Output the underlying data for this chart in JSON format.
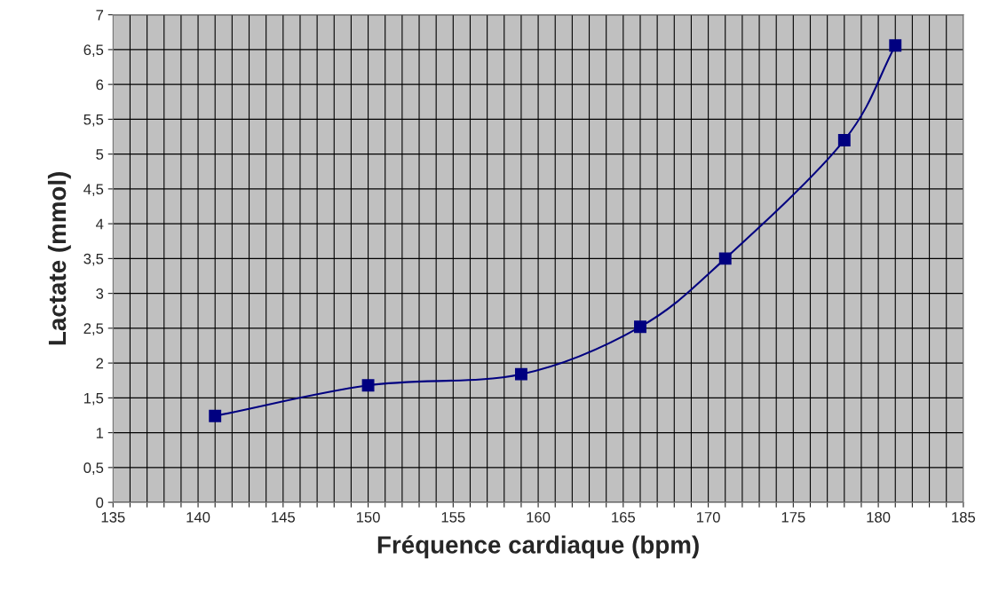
{
  "chart_data": {
    "type": "line",
    "xlabel": "Fréquence cardiaque (bpm)",
    "ylabel": "Lactate (mmol)",
    "x": [
      141,
      150,
      159,
      166,
      171,
      178,
      181
    ],
    "series": [
      {
        "color": "#000080",
        "values": [
          1.24,
          1.68,
          1.84,
          2.52,
          3.5,
          5.2,
          6.56
        ]
      }
    ],
    "marker": "square",
    "grid": true,
    "xlim": [
      135,
      185
    ],
    "xticks": [
      135,
      {
        "value": 136,
        "label": null
      },
      {
        "value": 137,
        "label": null
      },
      {
        "value": 138,
        "label": null
      },
      {
        "value": 139,
        "label": null
      },
      140,
      {
        "value": 141,
        "label": null
      },
      {
        "value": 142,
        "label": null
      },
      {
        "value": 143,
        "label": null
      },
      {
        "value": 144,
        "label": null
      },
      145,
      {
        "value": 146,
        "label": null
      },
      {
        "value": 147,
        "label": null
      },
      {
        "value": 148,
        "label": null
      },
      {
        "value": 149,
        "label": null
      },
      150,
      {
        "value": 151,
        "label": null
      },
      {
        "value": 152,
        "label": null
      },
      {
        "value": 153,
        "label": null
      },
      {
        "value": 154,
        "label": null
      },
      155,
      {
        "value": 156,
        "label": null
      },
      {
        "value": 157,
        "label": null
      },
      {
        "value": 158,
        "label": null
      },
      {
        "value": 159,
        "label": null
      },
      160,
      {
        "value": 161,
        "label": null
      },
      {
        "value": 162,
        "label": null
      },
      {
        "value": 163,
        "label": null
      },
      {
        "value": 164,
        "label": null
      },
      165,
      {
        "value": 166,
        "label": null
      },
      {
        "value": 167,
        "label": null
      },
      {
        "value": 168,
        "label": null
      },
      {
        "value": 169,
        "label": null
      },
      170,
      {
        "value": 171,
        "label": null
      },
      {
        "value": 172,
        "label": null
      },
      {
        "value": 173,
        "label": null
      },
      {
        "value": 174,
        "label": null
      },
      175,
      {
        "value": 176,
        "label": null
      },
      {
        "value": 177,
        "label": null
      },
      {
        "value": 178,
        "label": null
      },
      {
        "value": 179,
        "label": null
      },
      180,
      {
        "value": 181,
        "label": null
      },
      {
        "value": 182,
        "label": null
      },
      {
        "value": 183,
        "label": null
      },
      {
        "value": 184,
        "label": null
      },
      185
    ],
    "ylim": [
      0,
      7
    ],
    "yticks": [
      0,
      {
        "value": 0.5,
        "label": "0,5"
      },
      1,
      {
        "value": 1.5,
        "label": "1,5"
      },
      2,
      {
        "value": 2.5,
        "label": "2,5"
      },
      3,
      {
        "value": 3.5,
        "label": "3,5"
      },
      4,
      {
        "value": 4.5,
        "label": "4,5"
      },
      5,
      {
        "value": 5.5,
        "label": "5,5"
      },
      6,
      {
        "value": 6.5,
        "label": "6,5"
      },
      7
    ]
  }
}
